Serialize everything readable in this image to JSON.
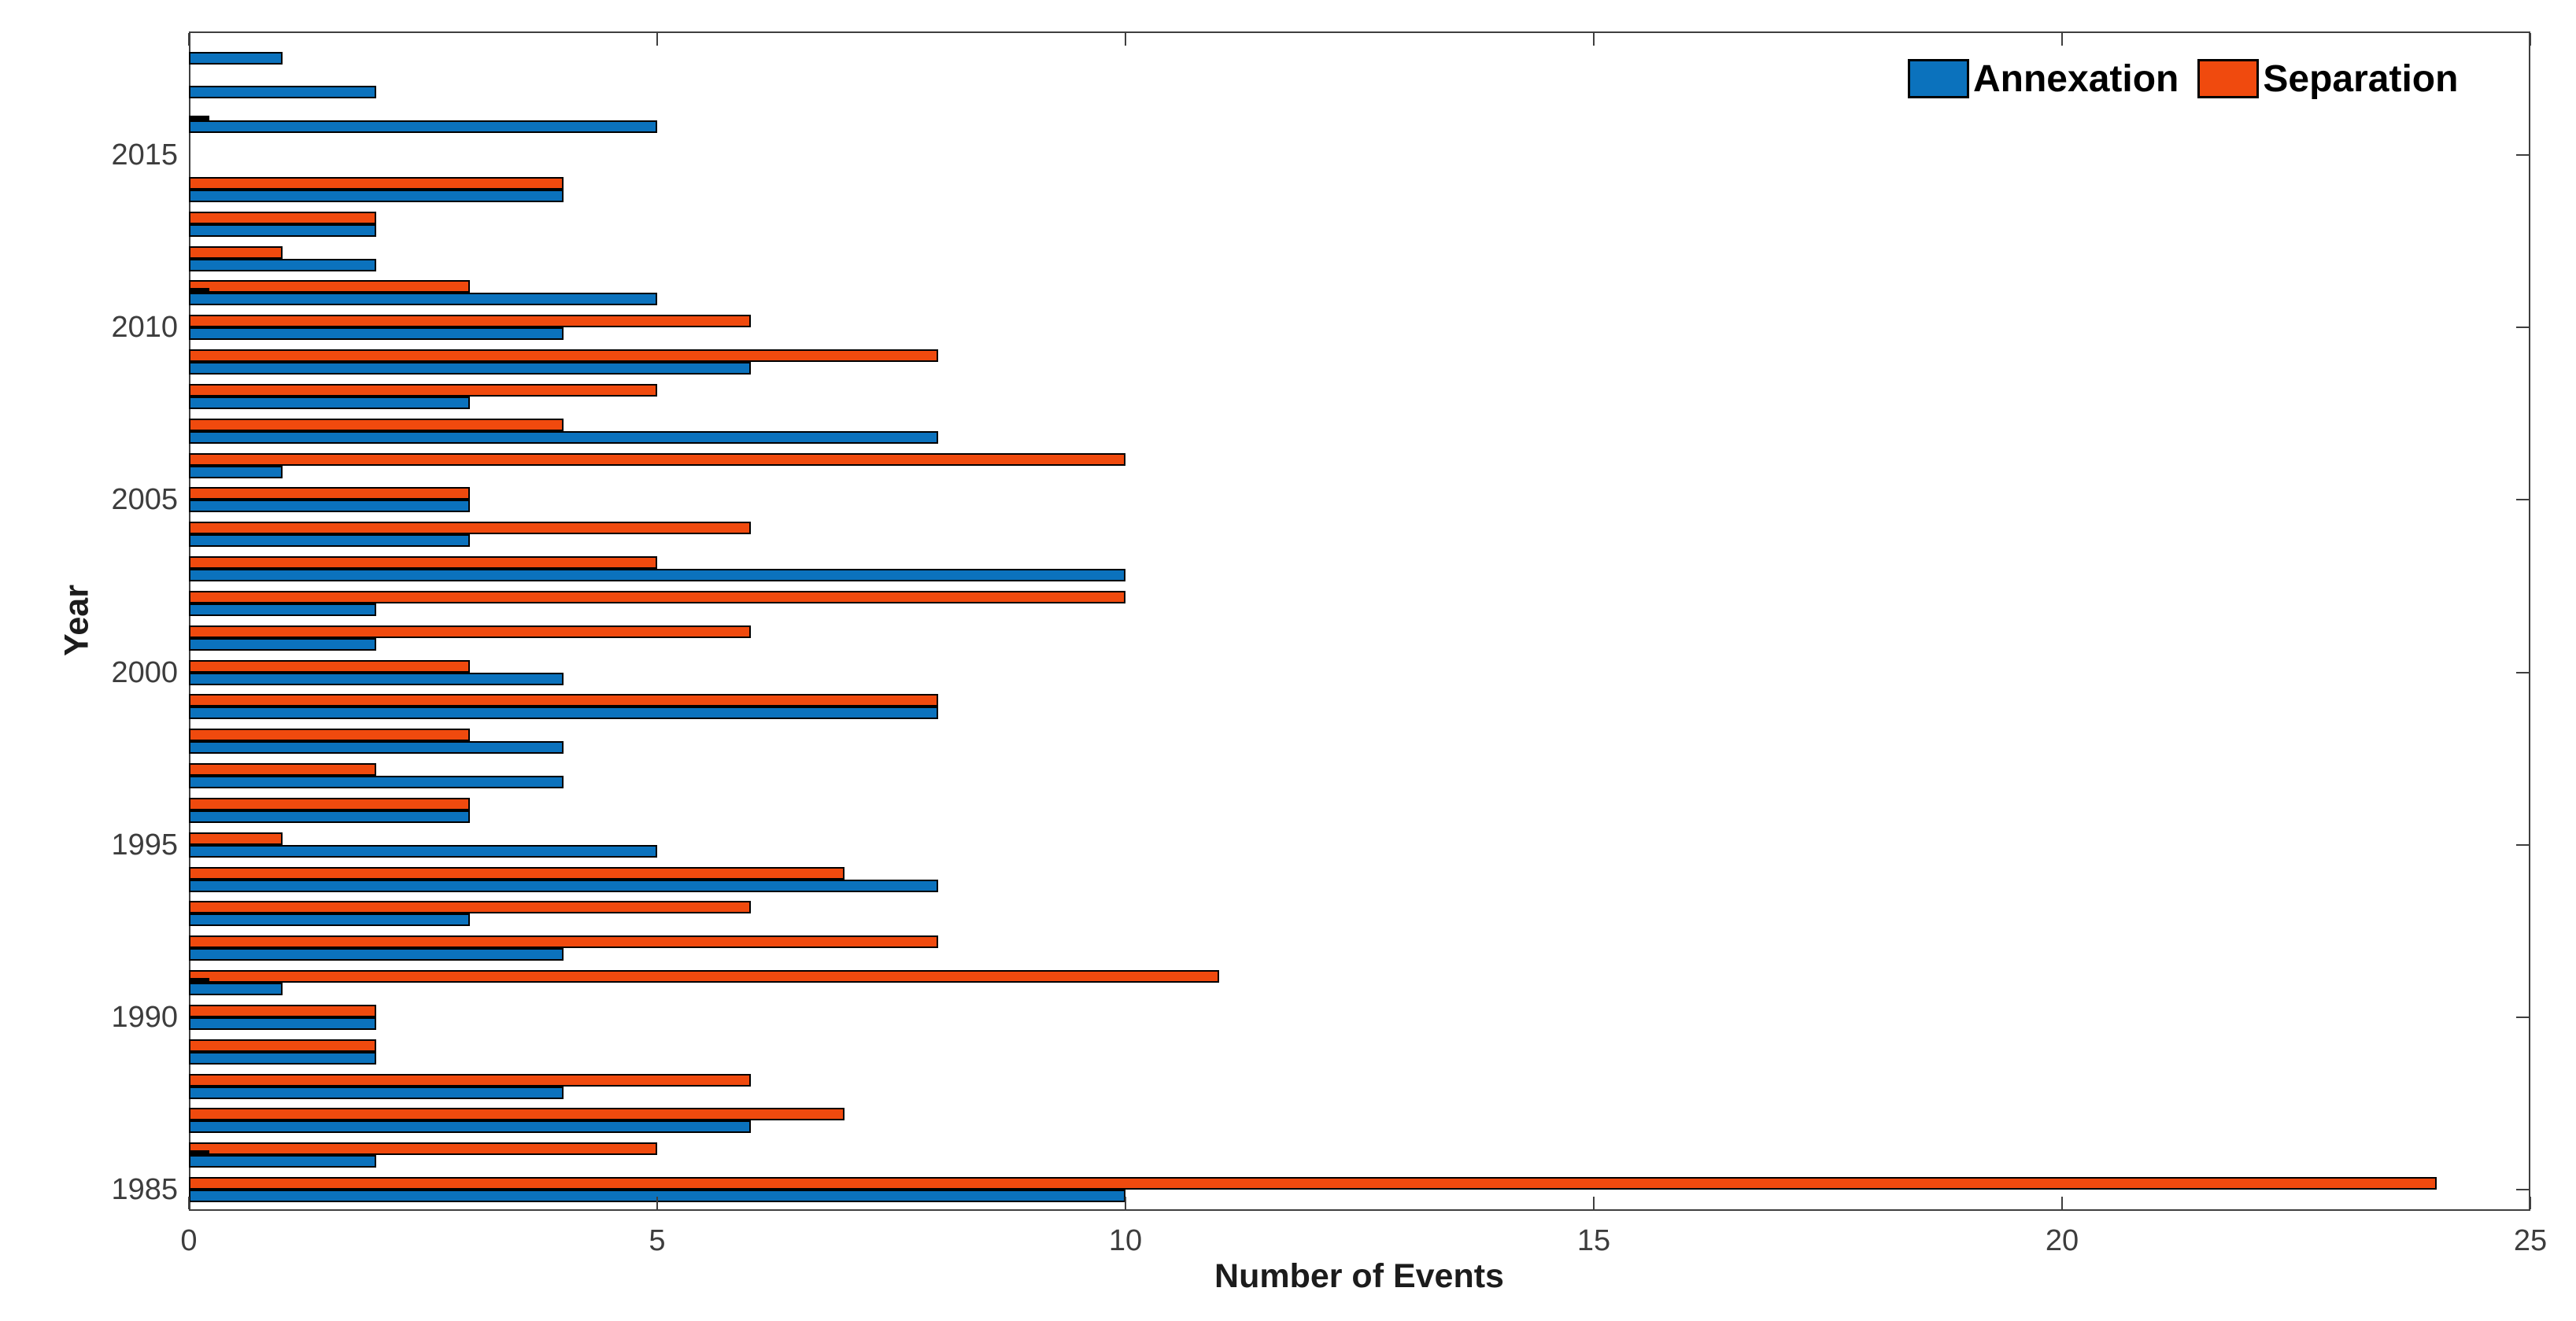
{
  "chart_data": {
    "type": "bar",
    "orientation": "horizontal-grouped",
    "title": "",
    "xlabel": "Number of Events",
    "ylabel": "Year",
    "xlim": [
      0,
      25
    ],
    "x_ticks": [
      0,
      5,
      10,
      15,
      20,
      25
    ],
    "y_ticks": [
      1985,
      1990,
      1995,
      2000,
      2005,
      2010,
      2015
    ],
    "grid": false,
    "legend_position": "top-right-inside",
    "categories": [
      1985,
      1986,
      1987,
      1988,
      1989,
      1990,
      1991,
      1992,
      1993,
      1994,
      1995,
      1996,
      1997,
      1998,
      1999,
      2000,
      2001,
      2002,
      2003,
      2004,
      2005,
      2006,
      2007,
      2008,
      2009,
      2010,
      2011,
      2012,
      2013,
      2014,
      2015,
      2016,
      2017,
      2018
    ],
    "series": [
      {
        "name": "Annexation",
        "color": "#0b72bd",
        "values": [
          10,
          2,
          6,
          4,
          2,
          2,
          1,
          4,
          3,
          8,
          5,
          3,
          4,
          4,
          8,
          4,
          2,
          2,
          10,
          3,
          3,
          1,
          8,
          3,
          6,
          4,
          5,
          2,
          2,
          4,
          0,
          5,
          2,
          1
        ]
      },
      {
        "name": "Separation",
        "color": "#f04a0e",
        "values": [
          24,
          5,
          7,
          6,
          2,
          2,
          11,
          8,
          6,
          7,
          1,
          3,
          2,
          3,
          8,
          3,
          6,
          10,
          5,
          6,
          3,
          10,
          4,
          5,
          8,
          6,
          3,
          1,
          2,
          4,
          0,
          0,
          0,
          0
        ]
      }
    ],
    "seam_mark_years": [
      1986,
      1991,
      2011,
      2016
    ],
    "seam_mark_length_units": 0.22
  },
  "legend": {
    "entries": [
      {
        "label": "Annexation",
        "color": "#0b72bd"
      },
      {
        "label": "Separation",
        "color": "#f04a0e"
      }
    ]
  },
  "axes": {
    "x_label": "Number of Events",
    "y_label": "Year",
    "spine_color": "#3f3f3f",
    "tick_label_color": "#3d3d3d",
    "bar_edge_color": "#000000"
  }
}
